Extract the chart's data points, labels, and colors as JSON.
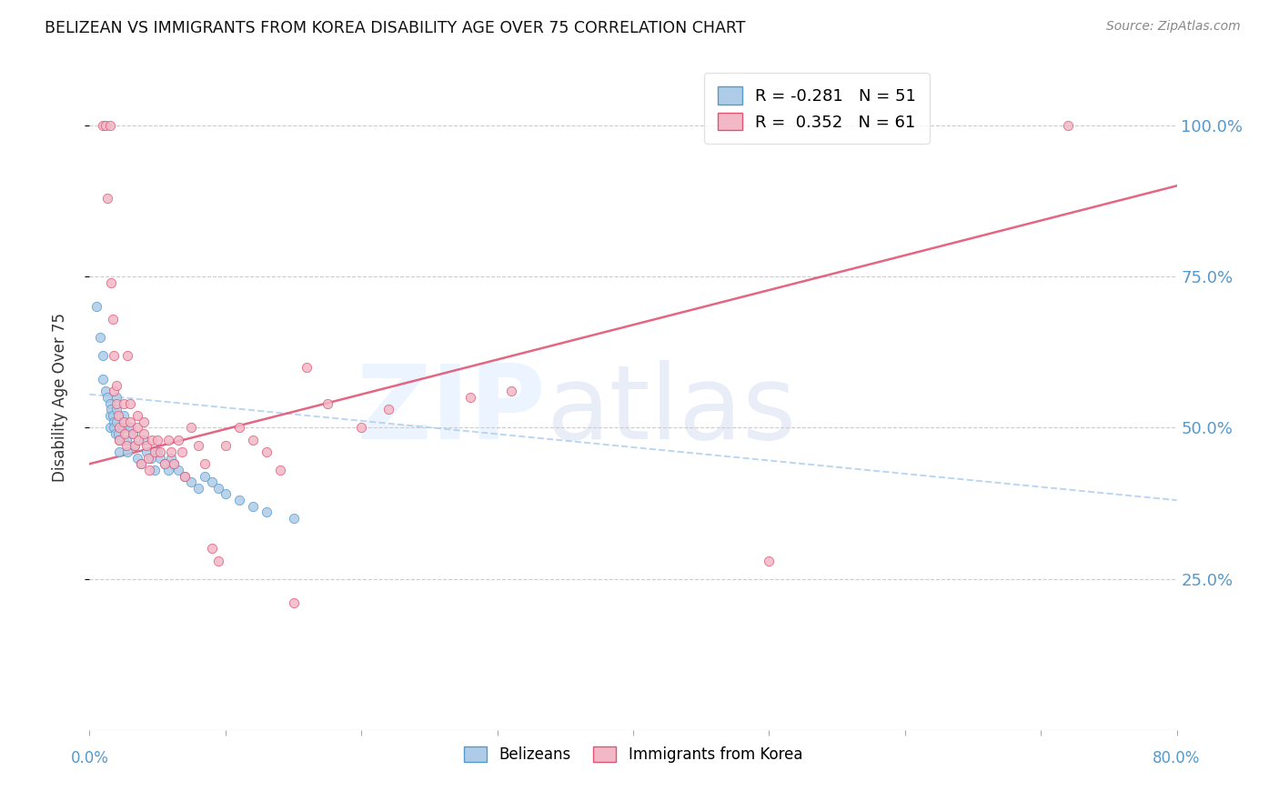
{
  "title": "BELIZEAN VS IMMIGRANTS FROM KOREA DISABILITY AGE OVER 75 CORRELATION CHART",
  "source": "Source: ZipAtlas.com",
  "ylabel": "Disability Age Over 75",
  "ylabel_ticks": [
    "100.0%",
    "75.0%",
    "50.0%",
    "25.0%"
  ],
  "ylabel_tick_vals": [
    1.0,
    0.75,
    0.5,
    0.25
  ],
  "xlim": [
    0.0,
    0.8
  ],
  "ylim": [
    0.0,
    1.1
  ],
  "legend_blue": {
    "R": -0.281,
    "N": 51,
    "label": "Belizeans"
  },
  "legend_pink": {
    "R": 0.352,
    "N": 61,
    "label": "Immigrants from Korea"
  },
  "blue_color": "#aecce8",
  "pink_color": "#f2b8c6",
  "blue_line_color": "#5599cc",
  "pink_line_color": "#e05575",
  "blue_trend": [
    0.0,
    0.555,
    0.8,
    0.38
  ],
  "pink_trend": [
    0.0,
    0.44,
    0.8,
    0.9
  ],
  "blue_scatter_x": [
    0.005,
    0.008,
    0.01,
    0.01,
    0.012,
    0.013,
    0.015,
    0.015,
    0.015,
    0.016,
    0.017,
    0.018,
    0.018,
    0.019,
    0.02,
    0.02,
    0.02,
    0.021,
    0.022,
    0.022,
    0.025,
    0.025,
    0.027,
    0.028,
    0.03,
    0.032,
    0.033,
    0.035,
    0.038,
    0.04,
    0.042,
    0.045,
    0.048,
    0.05,
    0.052,
    0.055,
    0.058,
    0.06,
    0.062,
    0.065,
    0.07,
    0.075,
    0.08,
    0.085,
    0.09,
    0.095,
    0.1,
    0.11,
    0.12,
    0.13,
    0.15
  ],
  "blue_scatter_y": [
    0.7,
    0.65,
    0.62,
    0.58,
    0.56,
    0.55,
    0.54,
    0.52,
    0.5,
    0.53,
    0.52,
    0.51,
    0.5,
    0.49,
    0.55,
    0.53,
    0.51,
    0.49,
    0.48,
    0.46,
    0.52,
    0.5,
    0.48,
    0.46,
    0.5,
    0.49,
    0.47,
    0.45,
    0.44,
    0.48,
    0.46,
    0.45,
    0.43,
    0.46,
    0.45,
    0.44,
    0.43,
    0.45,
    0.44,
    0.43,
    0.42,
    0.41,
    0.4,
    0.42,
    0.41,
    0.4,
    0.39,
    0.38,
    0.37,
    0.36,
    0.35
  ],
  "pink_scatter_x": [
    0.01,
    0.012,
    0.013,
    0.015,
    0.016,
    0.017,
    0.018,
    0.018,
    0.02,
    0.02,
    0.021,
    0.022,
    0.022,
    0.025,
    0.025,
    0.026,
    0.027,
    0.028,
    0.03,
    0.03,
    0.032,
    0.033,
    0.035,
    0.035,
    0.036,
    0.038,
    0.04,
    0.04,
    0.042,
    0.043,
    0.044,
    0.046,
    0.048,
    0.05,
    0.052,
    0.055,
    0.058,
    0.06,
    0.062,
    0.065,
    0.068,
    0.07,
    0.075,
    0.08,
    0.085,
    0.09,
    0.095,
    0.1,
    0.11,
    0.12,
    0.13,
    0.14,
    0.15,
    0.16,
    0.175,
    0.2,
    0.22,
    0.28,
    0.31,
    0.5,
    0.72
  ],
  "pink_scatter_y": [
    1.0,
    1.0,
    0.88,
    1.0,
    0.74,
    0.68,
    0.62,
    0.56,
    0.57,
    0.54,
    0.52,
    0.5,
    0.48,
    0.54,
    0.51,
    0.49,
    0.47,
    0.62,
    0.54,
    0.51,
    0.49,
    0.47,
    0.52,
    0.5,
    0.48,
    0.44,
    0.51,
    0.49,
    0.47,
    0.45,
    0.43,
    0.48,
    0.46,
    0.48,
    0.46,
    0.44,
    0.48,
    0.46,
    0.44,
    0.48,
    0.46,
    0.42,
    0.5,
    0.47,
    0.44,
    0.3,
    0.28,
    0.47,
    0.5,
    0.48,
    0.46,
    0.43,
    0.21,
    0.6,
    0.54,
    0.5,
    0.53,
    0.55,
    0.56,
    0.28,
    1.0
  ]
}
